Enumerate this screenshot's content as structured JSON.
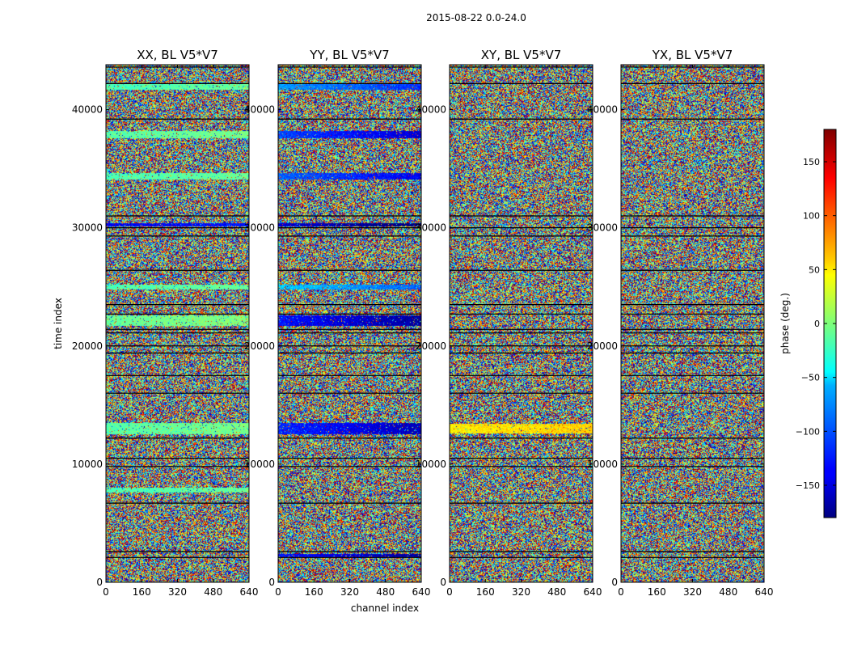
{
  "figure": {
    "suptitle": "2015-08-22 0.0-24.0",
    "xlabel": "channel index",
    "ylabel": "time index",
    "colorbar_label": "phase (deg.)",
    "colorbar_ticks": [
      150,
      100,
      50,
      0,
      -50,
      -100,
      -150
    ],
    "colorbar_tick_labels": [
      "150",
      "100",
      "50",
      "0",
      "−50",
      "−100",
      "−150"
    ],
    "colorbar_range": [
      -180,
      180
    ],
    "colormap": "jet"
  },
  "chart_data": {
    "type": "heatmap",
    "colormap": "jet",
    "value_range": [
      -180,
      180
    ],
    "xlabel": "channel index",
    "ylabel": "time index",
    "x_ticks": [
      0,
      160,
      320,
      480,
      640
    ],
    "x_tick_labels": [
      "0",
      "160",
      "320",
      "480",
      "640"
    ],
    "y_ticks": [
      0,
      10000,
      20000,
      30000,
      40000
    ],
    "y_tick_labels": [
      "0",
      "10000",
      "20000",
      "30000",
      "40000"
    ],
    "xlim": [
      0,
      640
    ],
    "ylim": [
      0,
      43800
    ],
    "panels": [
      {
        "title": "XX, BL V5*V7",
        "coherent_bands": [
          {
            "y": [
              41700,
              42200
            ],
            "phase": -20
          },
          {
            "y": [
              37600,
              38200
            ],
            "phase": -15
          },
          {
            "y": [
              34100,
              34600
            ],
            "phase": -20
          },
          {
            "y": [
              30100,
              30400
            ],
            "phase": -140
          },
          {
            "y": [
              24800,
              25200
            ],
            "phase": -20
          },
          {
            "y": [
              21700,
              22600
            ],
            "phase": -10
          },
          {
            "y": [
              12500,
              13500
            ],
            "phase": -15
          },
          {
            "y": [
              7600,
              8000
            ],
            "phase": -20
          }
        ],
        "gaps": [
          43600,
          42200,
          39200,
          31000,
          30000,
          29300,
          26400,
          23500,
          22700,
          21400,
          21100,
          20000,
          19400,
          17500,
          16000,
          12200,
          10500,
          9800,
          6700,
          2600,
          2100
        ]
      },
      {
        "title": "YY, BL V5*V7",
        "coherent_bands": [
          {
            "y": [
              41700,
              42200
            ],
            "phase": -80
          },
          {
            "y": [
              37600,
              38200
            ],
            "phase": -110
          },
          {
            "y": [
              34100,
              34600
            ],
            "phase": -100
          },
          {
            "y": [
              30100,
              30400
            ],
            "phase": -150
          },
          {
            "y": [
              24800,
              25200
            ],
            "phase": -60
          },
          {
            "y": [
              21700,
              22600
            ],
            "phase": -130
          },
          {
            "y": [
              12500,
              13500
            ],
            "phase": -120
          },
          {
            "y": [
              2100,
              2400
            ],
            "phase": -130
          }
        ],
        "gaps": [
          43600,
          42200,
          39200,
          31000,
          30000,
          29300,
          26400,
          23500,
          22700,
          21400,
          21100,
          20000,
          19400,
          17500,
          16000,
          12200,
          10500,
          9800,
          6700,
          2600,
          2100
        ]
      },
      {
        "title": "XY, BL V5*V7",
        "coherent_bands": [
          {
            "y": [
              12600,
              13400
            ],
            "phase": 50
          }
        ],
        "gaps": [
          43600,
          42200,
          39200,
          31000,
          30000,
          29300,
          26400,
          23500,
          22700,
          21400,
          21100,
          20000,
          19400,
          17500,
          16000,
          12200,
          10500,
          9800,
          6700,
          2600,
          2100
        ]
      },
      {
        "title": "YX, BL V5*V7",
        "coherent_bands": [],
        "gaps": [
          43600,
          42200,
          39200,
          31000,
          30000,
          29300,
          26400,
          23500,
          22700,
          21400,
          21100,
          20000,
          19400,
          17500,
          16000,
          12200,
          10500,
          9800,
          6700,
          2600,
          2100
        ]
      }
    ]
  }
}
